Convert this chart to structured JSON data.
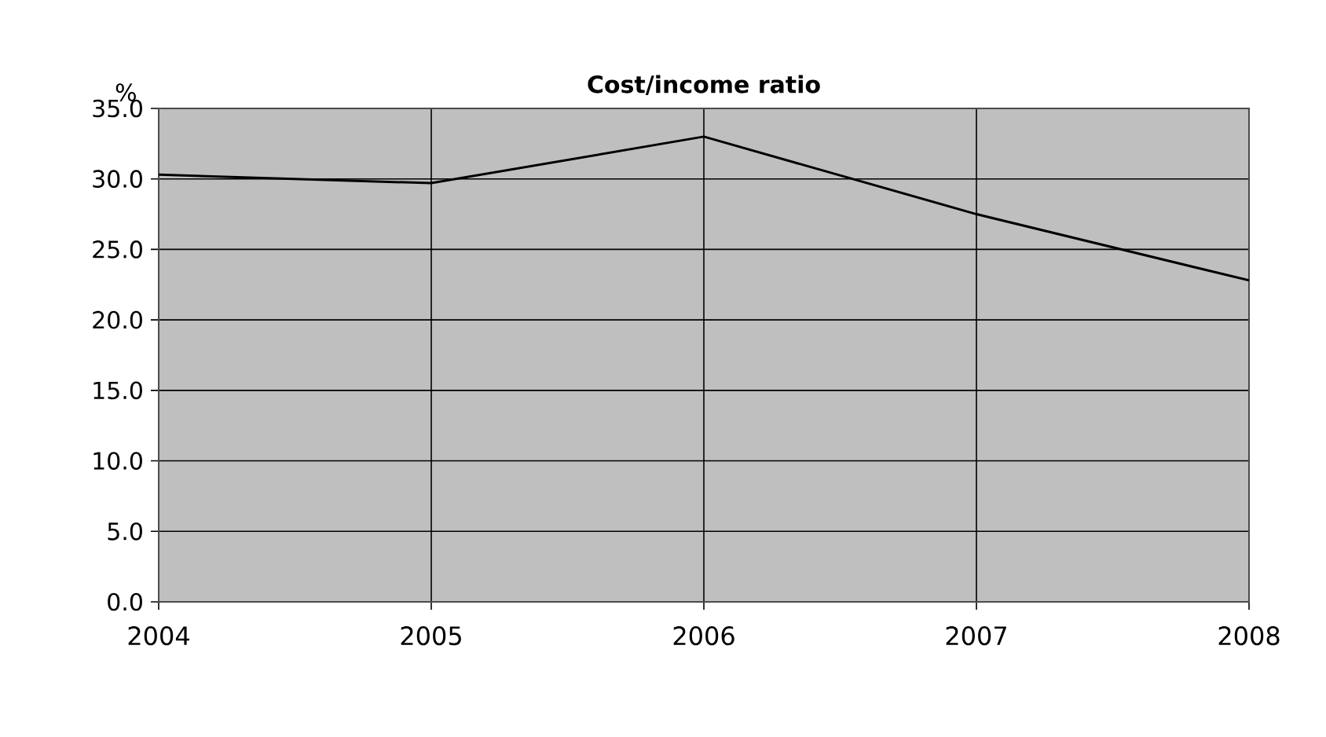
{
  "chart_data": {
    "type": "line",
    "title": "Cost/income ratio",
    "ylabel": "%",
    "categories": [
      "2004",
      "2005",
      "2006",
      "2007",
      "2008"
    ],
    "series": [
      {
        "color": "#000000",
        "values": [
          30.3,
          29.7,
          33.0,
          27.5,
          22.8
        ]
      }
    ],
    "ylim": [
      0,
      35
    ],
    "yticks": [
      {
        "value": 0,
        "label": "0.0"
      },
      {
        "value": 5,
        "label": "5.0"
      },
      {
        "value": 10,
        "label": "10.0"
      },
      {
        "value": 15,
        "label": "15.0"
      },
      {
        "value": 20,
        "label": "20.0"
      },
      {
        "value": 25,
        "label": "25.0"
      },
      {
        "value": 30,
        "label": "30.0"
      },
      {
        "value": 35,
        "label": "35.0"
      }
    ],
    "grid": true,
    "marker": "none",
    "line_style": "solid"
  }
}
